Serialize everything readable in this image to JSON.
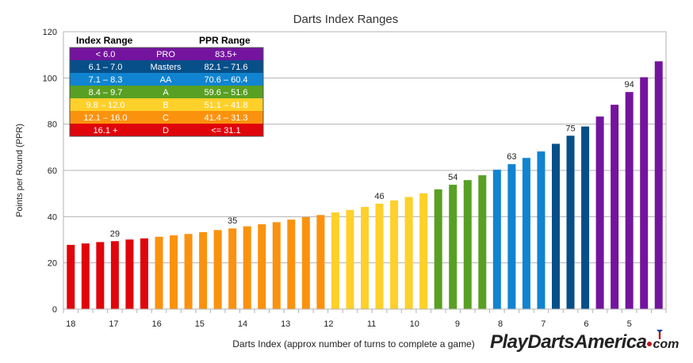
{
  "chart_data": {
    "type": "bar",
    "title": "Darts Index Ranges",
    "xlabel": "Darts Index (approx number of turns to complete a game)",
    "ylabel": "Points per Round (PPR)",
    "ylim": [
      0,
      120
    ],
    "yticks": [
      0,
      20,
      40,
      60,
      80,
      100,
      120
    ],
    "grid": true,
    "xtick_labels": [
      "18",
      "17",
      "16",
      "15",
      "14",
      "13",
      "12",
      "11",
      "10",
      "9",
      "8",
      "7",
      "6",
      "5"
    ],
    "values": [
      27.8,
      28.4,
      29.0,
      29.4,
      30.1,
      30.6,
      31.3,
      31.9,
      32.5,
      33.3,
      34.2,
      34.9,
      35.8,
      36.7,
      37.6,
      38.7,
      39.8,
      40.7,
      41.8,
      42.9,
      44.2,
      45.6,
      47.0,
      48.5,
      50.1,
      51.8,
      53.8,
      55.8,
      57.9,
      60.3,
      62.7,
      65.4,
      68.2,
      71.5,
      75.0,
      79.0,
      83.3,
      88.4,
      93.9,
      100.3,
      107.2
    ],
    "value_labels": [
      {
        "index": 3,
        "text": "29"
      },
      {
        "index": 11,
        "text": "35"
      },
      {
        "index": 21,
        "text": "46"
      },
      {
        "index": 26,
        "text": "54"
      },
      {
        "index": 30,
        "text": "63"
      },
      {
        "index": 34,
        "text": "75"
      },
      {
        "index": 38,
        "text": "94"
      }
    ],
    "colors": [
      "#e0040b",
      "#e0040b",
      "#e0040b",
      "#e0040b",
      "#e0040b",
      "#e0040b",
      "#fb920e",
      "#fb920e",
      "#fb920e",
      "#fb920e",
      "#fb920e",
      "#fb920e",
      "#fb920e",
      "#fb920e",
      "#fb920e",
      "#fb920e",
      "#fb920e",
      "#fb920e",
      "#fed02a",
      "#fed02a",
      "#fed02a",
      "#fed02a",
      "#fed02a",
      "#fed02a",
      "#fed02a",
      "#58a023",
      "#58a023",
      "#58a023",
      "#58a023",
      "#1084d0",
      "#1084d0",
      "#1084d0",
      "#1084d0",
      "#074f88",
      "#074f88",
      "#074f88",
      "#74149e",
      "#74149e",
      "#74149e",
      "#74149e",
      "#74149e"
    ],
    "legend": {
      "placement": "top-left",
      "header_index": "Index Range",
      "header_ppr": "PPR Range",
      "rows": [
        {
          "index_range": "< 6.0",
          "level": "PRO",
          "ppr_range": "83.5+",
          "color": "#74149e"
        },
        {
          "index_range": "6.1 – 7.0",
          "level": "Masters",
          "ppr_range": "82.1 – 71.6",
          "color": "#074f88"
        },
        {
          "index_range": "7.1 – 8.3",
          "level": "AA",
          "ppr_range": "70.6 – 60.4",
          "color": "#1084d0"
        },
        {
          "index_range": "8.4 – 9.7",
          "level": "A",
          "ppr_range": "59.6 – 51.6",
          "color": "#58a023"
        },
        {
          "index_range": "9.8 – 12.0",
          "level": "B",
          "ppr_range": "51.1 – 41.8",
          "color": "#fed02a"
        },
        {
          "index_range": "12.1 – 16.0",
          "level": "C",
          "ppr_range": "41.4 – 31.3",
          "color": "#fb920e"
        },
        {
          "index_range": "16.1 +",
          "level": "D",
          "ppr_range": "<= 31.1",
          "color": "#e0040b"
        }
      ]
    }
  },
  "branding": {
    "name": "PlayDartsAmerica",
    "tld": "com"
  }
}
